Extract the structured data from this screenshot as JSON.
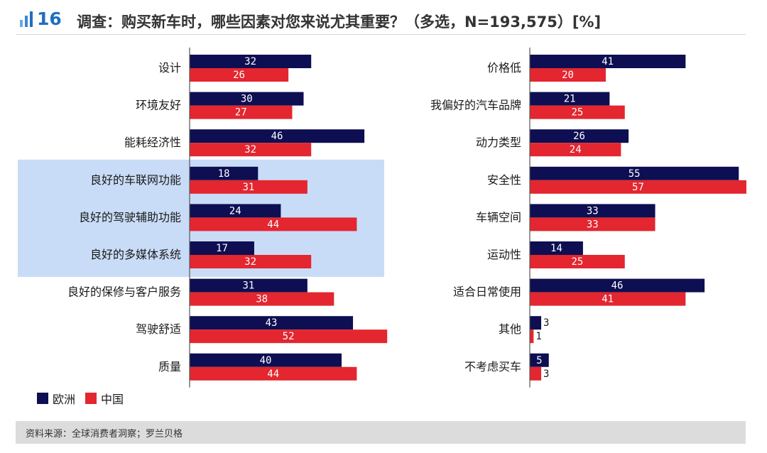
{
  "header": {
    "figure_number": "16",
    "title": "调查：购买新车时，哪些因素对您来说尤其重要？（多选，N=193,575）[%]"
  },
  "legend": {
    "items": [
      {
        "label": "欧洲",
        "color": "#0e0e52"
      },
      {
        "label": "中国",
        "color": "#e3262f"
      }
    ]
  },
  "source": "资料来源：全球消费者洞察；罗兰贝格",
  "colors": {
    "europe": "#0e0e52",
    "china": "#e3262f",
    "highlight": "#c9dcf7"
  },
  "chart_data": [
    {
      "type": "bar",
      "orientation": "horizontal",
      "categories": [
        "设计",
        "环境友好",
        "能耗经济性",
        "良好的车联网功能",
        "良好的驾驶辅助功能",
        "良好的多媒体系统",
        "良好的保修与客户服务",
        "驾驶舒适",
        "质量"
      ],
      "series": [
        {
          "name": "欧洲",
          "values": [
            32,
            30,
            46,
            18,
            24,
            17,
            31,
            43,
            40
          ]
        },
        {
          "name": "中国",
          "values": [
            26,
            27,
            32,
            31,
            44,
            32,
            38,
            52,
            44
          ]
        }
      ],
      "highlighted_categories": [
        "良好的车联网功能",
        "良好的驾驶辅助功能",
        "良好的多媒体系统"
      ],
      "xlim": [
        0,
        52
      ]
    },
    {
      "type": "bar",
      "orientation": "horizontal",
      "categories": [
        "价格低",
        "我偏好的汽车品牌",
        "动力类型",
        "安全性",
        "车辆空间",
        "运动性",
        "适合日常使用",
        "其他",
        "不考虑买车"
      ],
      "series": [
        {
          "name": "欧洲",
          "values": [
            41,
            21,
            26,
            55,
            33,
            14,
            46,
            3,
            5
          ]
        },
        {
          "name": "中国",
          "values": [
            20,
            25,
            24,
            57,
            33,
            25,
            41,
            1,
            3
          ]
        }
      ],
      "xlim": [
        0,
        57
      ]
    }
  ]
}
